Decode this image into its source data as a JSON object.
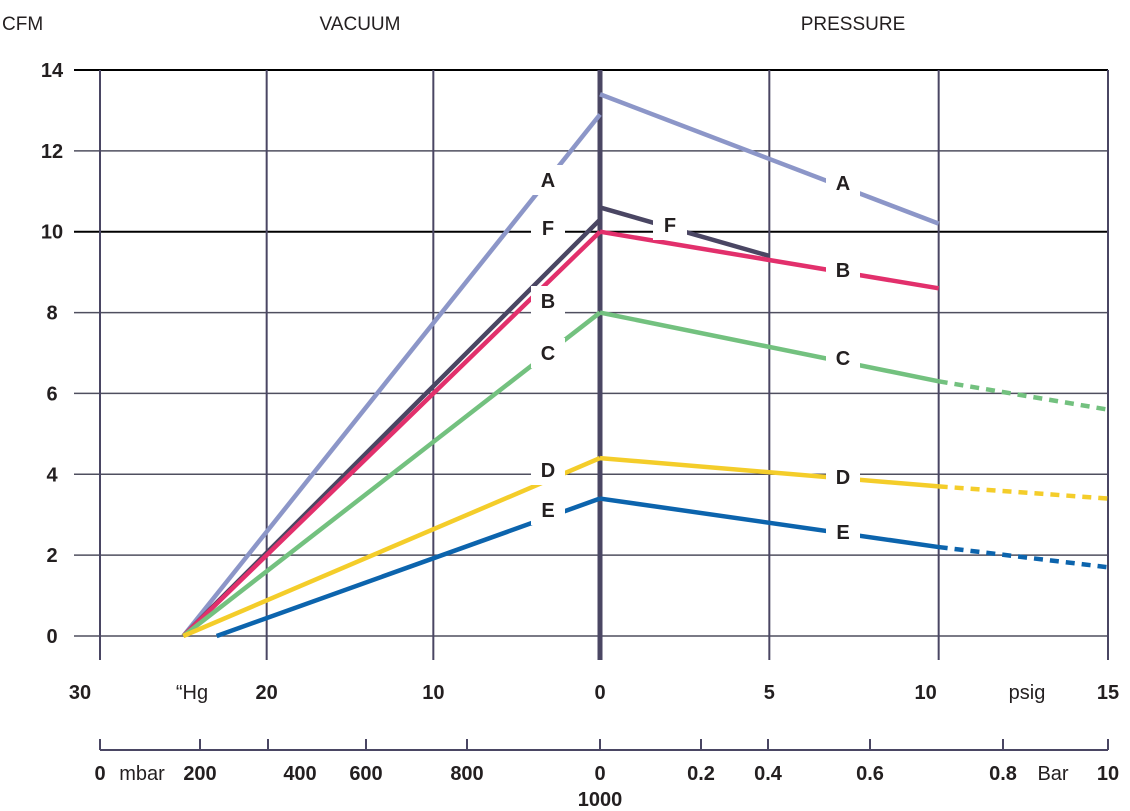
{
  "chart_data": {
    "type": "line",
    "header": {
      "y_unit": "CFM",
      "left_title": "VACUUM",
      "right_title": "PRESSURE"
    },
    "y_axis": {
      "range": [
        0,
        14
      ],
      "ticks": [
        "0",
        "2",
        "4",
        "6",
        "8",
        "10",
        "12",
        "14"
      ]
    },
    "x_axis_primary": {
      "vacuum_unit": "“Hg",
      "pressure_unit": "psig",
      "vacuum_range": [
        30,
        0
      ],
      "pressure_range": [
        0,
        15
      ],
      "vacuum_ticks": [
        "30",
        "20",
        "10",
        "0"
      ],
      "pressure_ticks": [
        "5",
        "10",
        "15"
      ]
    },
    "x_axis_secondary": {
      "vacuum_unit": "mbar",
      "pressure_unit": "Bar",
      "vacuum_ticks": [
        "0",
        "200",
        "400",
        "600",
        "800",
        "0"
      ],
      "zero_sublabel": "1000",
      "pressure_ticks": [
        "0.2",
        "0.4",
        "0.6",
        "0.8",
        "10"
      ]
    },
    "series": [
      {
        "name": "A",
        "color": "#8c96c8",
        "vacuum": [
          [
            25,
            0
          ],
          [
            0,
            12.9
          ]
        ],
        "pressure": [
          [
            0,
            13.4
          ],
          [
            10,
            10.2
          ]
        ],
        "dashed_extension": []
      },
      {
        "name": "F",
        "color": "#4a4663",
        "vacuum": [
          [
            25,
            0
          ],
          [
            0,
            10.3
          ]
        ],
        "pressure": [
          [
            0,
            10.6
          ],
          [
            5,
            9.4
          ]
        ],
        "dashed_extension": []
      },
      {
        "name": "B",
        "color": "#e2306c",
        "vacuum": [
          [
            25,
            0
          ],
          [
            0,
            10.0
          ]
        ],
        "pressure": [
          [
            0,
            10.0
          ],
          [
            10,
            8.6
          ]
        ],
        "dashed_extension": []
      },
      {
        "name": "C",
        "color": "#73c17f",
        "vacuum": [
          [
            25,
            0
          ],
          [
            0,
            8.0
          ]
        ],
        "pressure": [
          [
            0,
            8.0
          ],
          [
            10,
            6.3
          ]
        ],
        "dashed_extension": [
          [
            10,
            6.3
          ],
          [
            15,
            5.6
          ]
        ]
      },
      {
        "name": "D",
        "color": "#f4cd2a",
        "vacuum": [
          [
            25,
            0
          ],
          [
            0,
            4.4
          ]
        ],
        "pressure": [
          [
            0,
            4.4
          ],
          [
            10,
            3.7
          ]
        ],
        "dashed_extension": [
          [
            10,
            3.7
          ],
          [
            15,
            3.4
          ]
        ]
      },
      {
        "name": "E",
        "color": "#0c64ad",
        "vacuum": [
          [
            23,
            0
          ],
          [
            0,
            3.4
          ]
        ],
        "pressure": [
          [
            0,
            3.4
          ],
          [
            10,
            2.2
          ]
        ],
        "dashed_extension": [
          [
            10,
            2.2
          ],
          [
            15,
            1.7
          ]
        ]
      }
    ],
    "grid": true,
    "legend": "inline labels"
  }
}
